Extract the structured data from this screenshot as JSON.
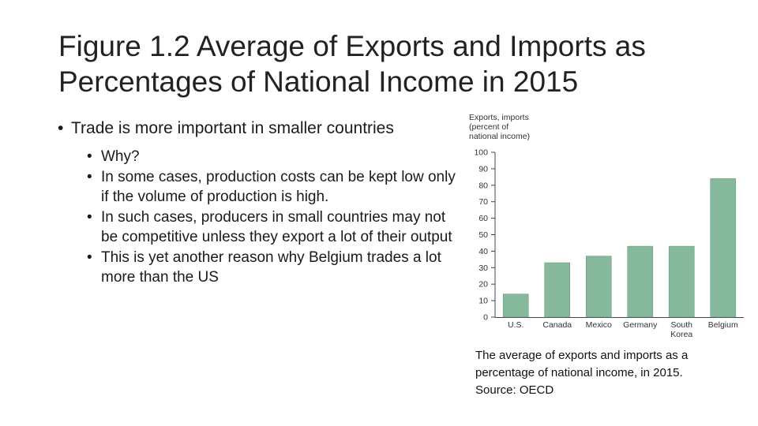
{
  "slide": {
    "title_line1": "Figure 1.2 Average of Exports and Imports as",
    "title_line2": "Percentages of National Income in 2015",
    "bullet_main": "Trade is more important in smaller countries",
    "sub_bullets": [
      "Why?",
      "In some cases, production costs can be kept low only if the volume of production is high.",
      "In such cases, producers in small countries may not be competitive unless they export a lot of their output",
      "This is yet another reason why Belgium trades a lot more than the US"
    ],
    "bullet_char": "•",
    "caption_lines": [
      "The average of exports and imports as a",
      "percentage of national income, in 2015.",
      "Source: OECD"
    ]
  },
  "chart_data": {
    "type": "bar",
    "ylabel_lines": [
      "Exports, imports",
      "(percent of",
      "national income)"
    ],
    "categories": [
      [
        "U.S."
      ],
      [
        "Canada"
      ],
      [
        "Mexico"
      ],
      [
        "Germany"
      ],
      [
        "South",
        "Korea"
      ],
      [
        "Belgium"
      ]
    ],
    "values": [
      14,
      33,
      37,
      43,
      43,
      84
    ],
    "ylim": [
      0,
      100
    ],
    "yticks": [
      0,
      10,
      20,
      30,
      40,
      50,
      60,
      70,
      80,
      90,
      100
    ],
    "bar_color": "#86b99b",
    "bar_edge": "#6a9c7e",
    "axis_color": "#444444",
    "grid": false
  }
}
